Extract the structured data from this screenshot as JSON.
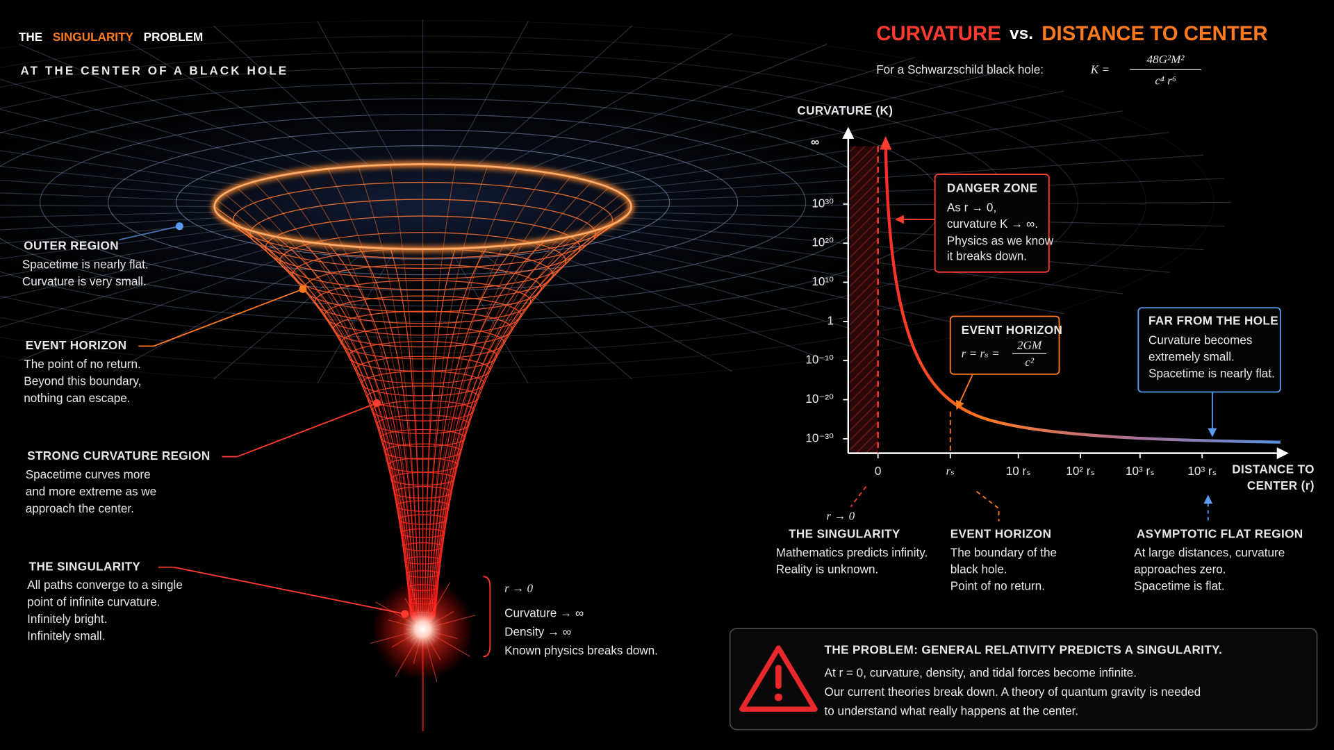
{
  "header": {
    "title": [
      "THE",
      "SINGULARITY",
      "PROBLEM"
    ],
    "subtitle": "AT THE CENTER OF A BLACK HOLE"
  },
  "illustration": {
    "regions": [
      {
        "title": "OUTER REGION",
        "lines": [
          "Spacetime is nearly flat.",
          "Curvature is very small."
        ]
      },
      {
        "title": "EVENT HORIZON",
        "lines": [
          "The point of no return.",
          "Beyond this boundary,",
          "nothing can escape."
        ]
      },
      {
        "title": "STRONG CURVATURE REGION",
        "lines": [
          "Spacetime curves more",
          "and more extreme as we",
          "approach the center."
        ]
      },
      {
        "title": "THE SINGULARITY",
        "lines": [
          "All paths converge to a single",
          "point of infinite curvature.",
          "Infinitely bright.",
          "Infinitely small."
        ]
      }
    ],
    "singularity_note": {
      "formula": "r → 0",
      "lines": [
        "Curvature → ∞",
        "Density → ∞",
        "Known physics breaks down."
      ]
    }
  },
  "chart": {
    "title": [
      "CURVATURE",
      "vs.",
      "DISTANCE TO CENTER"
    ],
    "formula_intro": "For a Schwarzschild black hole:",
    "formula": {
      "lhs": "K =",
      "numerator": "48G²M²",
      "denominator": "c⁴ r⁶"
    },
    "y_axis_label": "CURVATURE (K)",
    "y_infinity": "∞",
    "y_ticks": [
      "10³⁰",
      "10²⁰",
      "10¹⁰",
      "1",
      "10⁻¹⁰",
      "10⁻²⁰",
      "10⁻³⁰"
    ],
    "x_ticks": [
      "0",
      "rₛ",
      "10 rₛ",
      "10² rₛ",
      "10³ rₛ",
      "10³ rₛ"
    ],
    "x_axis_label": [
      "DISTANCE TO",
      "CENTER (r)"
    ],
    "danger_zone": {
      "title": "DANGER ZONE",
      "lines": [
        "As r → 0,",
        "curvature K → ∞.",
        "Physics as we know",
        "it breaks down."
      ]
    },
    "event_horizon_box": {
      "title": "EVENT HORIZON",
      "lhs": "r = rₛ =",
      "numerator": "2GM",
      "denominator": "c²"
    },
    "far_box": {
      "title": "FAR FROM THE HOLE",
      "lines": [
        "Curvature becomes",
        "extremely small.",
        "Spacetime is nearly flat."
      ]
    },
    "annotations": [
      {
        "formula": "r → 0",
        "title": "THE SINGULARITY",
        "lines": [
          "Mathematics predicts infinity.",
          "Reality is unknown."
        ]
      },
      {
        "title": "EVENT HORIZON",
        "lines": [
          "The boundary of the",
          "black hole.",
          "Point of no return."
        ]
      },
      {
        "title": "ASYMPTOTIC FLAT REGION",
        "lines": [
          "At large distances, curvature",
          "approaches zero.",
          "Spacetime is flat."
        ]
      }
    ]
  },
  "problem": {
    "title": "THE PROBLEM: GENERAL RELATIVITY PREDICTS A SINGULARITY.",
    "lines": [
      "At r = 0, curvature, density, and tidal forces become infinite.",
      "Our current theories break down. A theory of quantum gravity is needed",
      "to understand what really happens at the center."
    ]
  }
}
